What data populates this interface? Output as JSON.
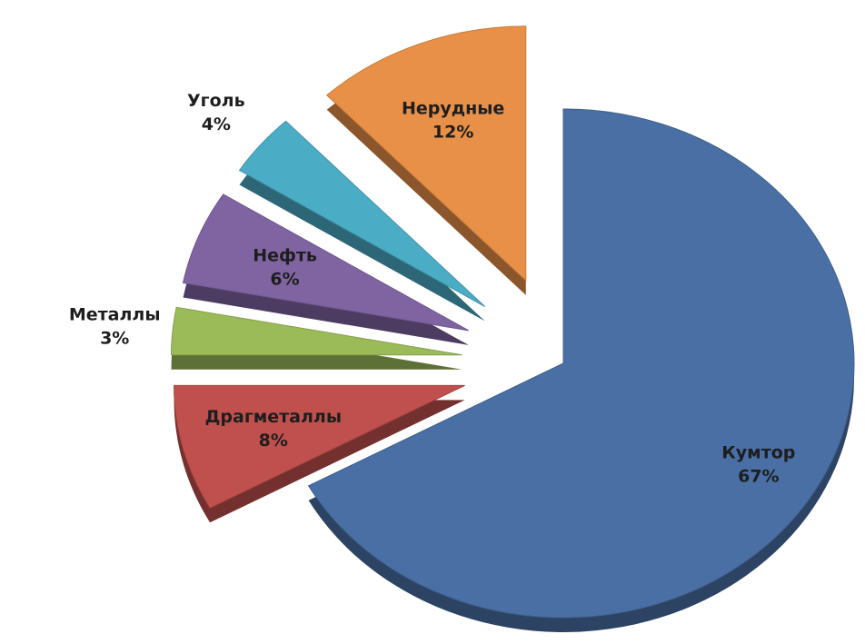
{
  "chart_data": {
    "type": "pie",
    "categories": [
      "Кумтор",
      "Драгметаллы",
      "Металлы",
      "Нефть",
      "Уголь",
      "Нерудные"
    ],
    "values": [
      67,
      8,
      3,
      6,
      4,
      12
    ],
    "value_labels": [
      "67%",
      "8%",
      "3%",
      "6%",
      "4%",
      "12%"
    ],
    "colors": [
      "#4a6fa5",
      "#c0504d",
      "#9bbb59",
      "#8064a2",
      "#4bacc6",
      "#e89048"
    ]
  }
}
